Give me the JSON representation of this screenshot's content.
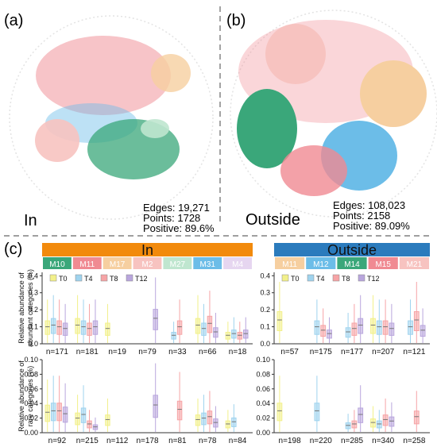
{
  "panels": {
    "a": {
      "letter": "(a)",
      "label": "In",
      "stats": [
        "Edges: 19,271",
        "Points: 1728",
        "Positive: 89.6%"
      ]
    },
    "b": {
      "letter": "(b)",
      "label": "Outside",
      "stats": [
        "Edges: 108,023",
        "Points: 2158",
        "Positive: 89.09%"
      ]
    },
    "c": {
      "letter": "(c)"
    }
  },
  "colors": {
    "in_header": "#f28a0c",
    "outside_header": "#2b7bbd",
    "T0": "#f2f08a",
    "T4": "#9fd3ee",
    "T8": "#f6a4a6",
    "T12": "#b9a6dd",
    "net_pink": "#f08a92",
    "net_blue": "#6cbde8",
    "net_green": "#3aa77a",
    "net_peach": "#f6cfa0",
    "net_salmon": "#f7c3c0"
  },
  "chart_data": [
    {
      "type": "box",
      "group": "In",
      "row": "abundant",
      "ylabel": "Relative abundance of abundant categories (%)",
      "ylim": [
        0,
        0.42
      ],
      "yticks": [
        "0.0",
        "0.1",
        "0.2",
        "0.3",
        "0.4"
      ],
      "legend": [
        "T0",
        "T4",
        "T8",
        "T12"
      ],
      "modules": [
        {
          "name": "M10",
          "color": "#3aa77a",
          "n": "n=171",
          "series": {
            "T0": 0.1,
            "T4": 0.11,
            "T8": 0.1,
            "T12": 0.09
          }
        },
        {
          "name": "M11",
          "color": "#f08a92",
          "n": "n=181",
          "series": {
            "T0": 0.11,
            "T4": 0.1,
            "T8": 0.09,
            "T12": 0.1
          }
        },
        {
          "name": "M17",
          "color": "#f6cfa0",
          "n": "n=19",
          "series": {
            "T0": 0.09
          }
        },
        {
          "name": "M2",
          "color": "#f7c3c0",
          "n": "n=79",
          "series": {
            "T12": 0.15
          }
        },
        {
          "name": "M27",
          "color": "#bfe6cf",
          "n": "n=33",
          "series": {
            "T4": 0.05,
            "T8": 0.1
          }
        },
        {
          "name": "M31",
          "color": "#6cbde8",
          "n": "n=66",
          "series": {
            "T0": 0.11,
            "T4": 0.09,
            "T8": 0.12,
            "T12": 0.07
          }
        },
        {
          "name": "M4",
          "color": "#e6d6f0",
          "n": "n=18",
          "series": {
            "T0": 0.05,
            "T4": 0.06,
            "T8": 0.05,
            "T12": 0.06
          }
        }
      ]
    },
    {
      "type": "box",
      "group": "In",
      "row": "rare",
      "ylabel": "Relative abundance of rare categories (%)",
      "ylim": [
        0,
        0.1
      ],
      "yticks": [
        "0.00",
        "0.02",
        "0.04",
        "0.06",
        "0.08",
        "0.10"
      ],
      "modules": [
        {
          "name": "M10",
          "n": "n=92",
          "series": {
            "T0": 0.028,
            "T4": 0.03,
            "T8": 0.03,
            "T12": 0.026
          }
        },
        {
          "name": "M11",
          "n": "n=215",
          "series": {
            "T0": 0.02,
            "T4": 0.025,
            "T8": 0.012,
            "T12": 0.008
          }
        },
        {
          "name": "M17",
          "n": "n=112",
          "series": {
            "T0": 0.018
          }
        },
        {
          "name": "M2",
          "n": "n=178",
          "series": {
            "T12": 0.038
          }
        },
        {
          "name": "M27",
          "n": "n=81",
          "series": {
            "T8": 0.032
          }
        },
        {
          "name": "M31",
          "n": "n=78",
          "series": {
            "T0": 0.018,
            "T4": 0.02,
            "T8": 0.022,
            "T12": 0.014
          }
        },
        {
          "name": "M4",
          "n": "n=84",
          "series": {
            "T0": 0.012,
            "T4": 0.015
          }
        }
      ]
    },
    {
      "type": "box",
      "group": "Outside",
      "row": "abundant",
      "ylim": [
        0,
        0.42
      ],
      "yticks": [
        "0.0",
        "0.1",
        "0.2",
        "0.3",
        "0.4"
      ],
      "legend": [
        "T0",
        "T4",
        "T8",
        "T12"
      ],
      "modules": [
        {
          "name": "M11",
          "color": "#f6cfa0",
          "n": "n=57",
          "series": {
            "T0": 0.14
          }
        },
        {
          "name": "M12",
          "color": "#6cbde8",
          "n": "n=175",
          "series": {
            "T4": 0.1,
            "T8": 0.08,
            "T12": 0.06
          }
        },
        {
          "name": "M14",
          "color": "#3aa77a",
          "n": "n=177",
          "series": {
            "T4": 0.07,
            "T8": 0.09,
            "T12": 0.11
          }
        },
        {
          "name": "M15",
          "color": "#f08a92",
          "n": "n=207",
          "series": {
            "T0": 0.11,
            "T4": 0.1,
            "T8": 0.1,
            "T12": 0.09
          }
        },
        {
          "name": "M21",
          "color": "#f7c3c0",
          "n": "n=121",
          "series": {
            "T4": 0.1,
            "T8": 0.14,
            "T12": 0.08
          }
        }
      ]
    },
    {
      "type": "box",
      "group": "Outside",
      "row": "rare",
      "ylim": [
        0,
        0.1
      ],
      "yticks": [
        "0.00",
        "0.02",
        "0.04",
        "0.06",
        "0.08",
        "0.10"
      ],
      "modules": [
        {
          "name": "M11",
          "n": "n=198",
          "series": {
            "T0": 0.03
          }
        },
        {
          "name": "M12",
          "n": "n=220",
          "series": {
            "T4": 0.03
          }
        },
        {
          "name": "M14",
          "n": "n=285",
          "series": {
            "T4": 0.01,
            "T8": 0.012,
            "T12": 0.025
          }
        },
        {
          "name": "M15",
          "n": "n=340",
          "series": {
            "T0": 0.014,
            "T4": 0.012,
            "T8": 0.018,
            "T12": 0.016
          }
        },
        {
          "name": "M21",
          "n": "n=258",
          "series": {
            "T8": 0.022
          }
        }
      ]
    }
  ]
}
